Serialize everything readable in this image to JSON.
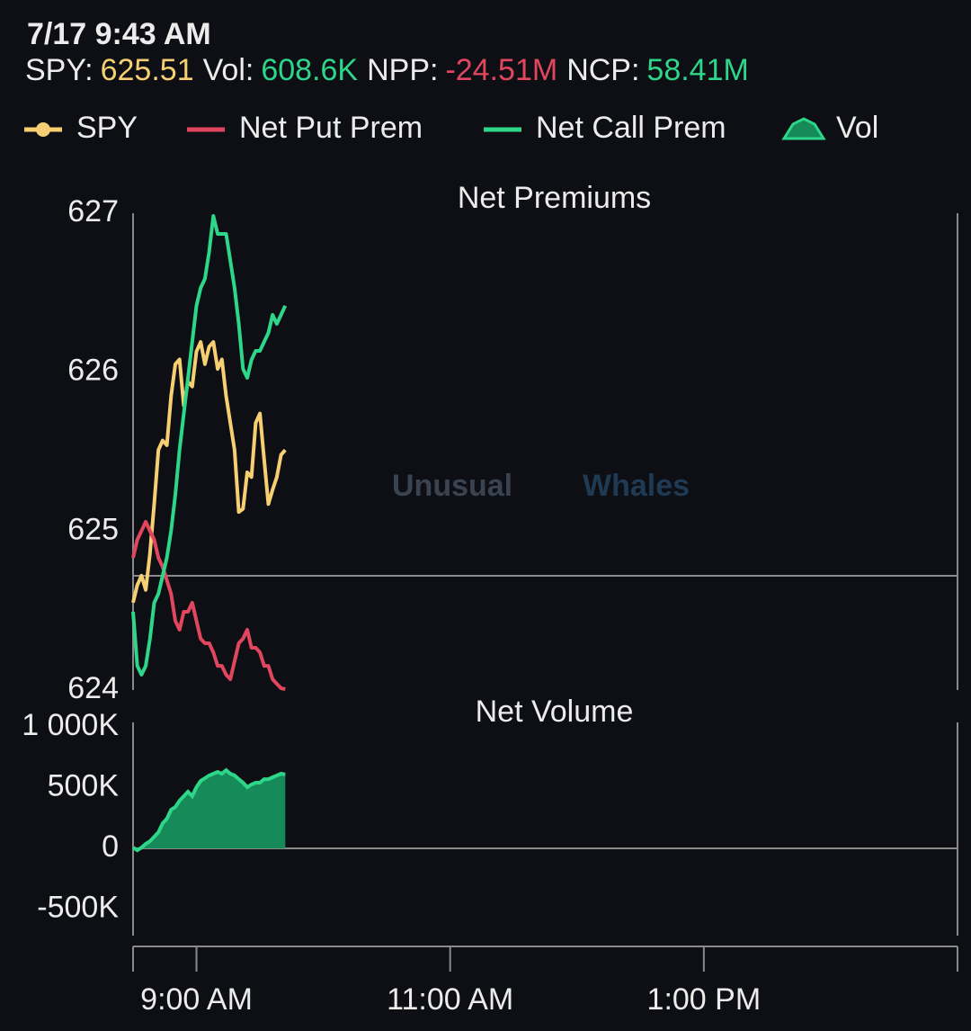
{
  "header": {
    "datetime": "7/17 9:43 AM",
    "stats": [
      {
        "label": "SPY:",
        "value": "625.51",
        "color": "#f6cf72"
      },
      {
        "label": "Vol:",
        "value": "608.6K",
        "color": "#2ed68a"
      },
      {
        "label": "NPP:",
        "value": "-24.51M",
        "color": "#e0475e"
      },
      {
        "label": "NCP:",
        "value": "58.41M",
        "color": "#2ed68a"
      }
    ]
  },
  "watermark": [
    "Unusual",
    "Whales"
  ],
  "chart_data": [
    {
      "type": "line",
      "title": "Net Premiums",
      "x": [
        510,
        512,
        514,
        516,
        518,
        520,
        522,
        524,
        526,
        528,
        530,
        532,
        534,
        536,
        538,
        540,
        542,
        544,
        546,
        548,
        550,
        552,
        554,
        556,
        558,
        560,
        562,
        564,
        566,
        568,
        570,
        572,
        574,
        576,
        578,
        580,
        582
      ],
      "xlim": [
        510,
        900
      ],
      "ylim": [
        624,
        627
      ],
      "yticks": [
        624,
        625,
        626,
        627
      ],
      "y2lim": [
        -24.7,
        78.4
      ],
      "series": [
        {
          "name": "SPY",
          "color": "#f6cf72",
          "legend_symbol": "line-circle",
          "values": [
            624.55,
            624.66,
            624.72,
            624.63,
            624.86,
            625.17,
            625.51,
            625.57,
            625.54,
            625.85,
            626.05,
            626.08,
            625.79,
            625.94,
            625.91,
            626.13,
            626.19,
            626.05,
            626.16,
            626.19,
            626.02,
            626.08,
            625.85,
            625.68,
            625.51,
            625.12,
            625.14,
            625.37,
            625.34,
            625.68,
            625.74,
            625.45,
            625.17,
            625.26,
            625.34,
            625.48,
            625.51
          ]
        },
        {
          "name": "Net Put Prem",
          "color": "#e0475e",
          "axis": "y2",
          "legend_symbol": "line",
          "values": [
            3.89,
            7.78,
            9.73,
            11.67,
            9.73,
            7.78,
            3.89,
            1.95,
            -0.97,
            -3.89,
            -9.73,
            -11.67,
            -7.78,
            -7.78,
            -5.84,
            -9.73,
            -13.62,
            -14.59,
            -14.59,
            -16.54,
            -19.46,
            -19.46,
            -21.4,
            -22.37,
            -18.48,
            -14.59,
            -13.62,
            -11.67,
            -15.56,
            -15.56,
            -16.54,
            -19.46,
            -19.46,
            -22.37,
            -23.35,
            -24.32,
            -24.51
          ]
        },
        {
          "name": "Net Call Prem",
          "color": "#2ed68a",
          "axis": "y2",
          "legend_symbol": "line",
          "values": [
            -7.78,
            -19.46,
            -21.4,
            -19.46,
            -13.62,
            -5.84,
            -3.89,
            0,
            3.89,
            9.73,
            17.51,
            27.24,
            35.02,
            42.8,
            50.58,
            58.37,
            62.26,
            64.2,
            70.04,
            77.82,
            73.93,
            73.93,
            73.93,
            68.09,
            62.26,
            54.47,
            44.75,
            42.8,
            46.69,
            48.64,
            48.64,
            50.58,
            52.53,
            56.42,
            54.47,
            56.42,
            58.41
          ]
        }
      ]
    },
    {
      "type": "area",
      "title": "Net Volume",
      "x": [
        510,
        512,
        514,
        516,
        518,
        520,
        522,
        524,
        526,
        528,
        530,
        532,
        534,
        536,
        538,
        540,
        542,
        544,
        546,
        548,
        550,
        552,
        554,
        556,
        558,
        560,
        562,
        564,
        566,
        568,
        570,
        572,
        574,
        576,
        578,
        580,
        582
      ],
      "xlim": [
        510,
        900
      ],
      "xticks": [
        {
          "value": 540,
          "label": "9:00 AM"
        },
        {
          "value": 660,
          "label": "11:00 AM"
        },
        {
          "value": 780,
          "label": "1:00 PM"
        }
      ],
      "ylim": [
        -807000,
        1037000
      ],
      "yticks": [
        {
          "value": -500000,
          "label": "-500K"
        },
        0,
        {
          "value": 500000,
          "label": "500K"
        },
        {
          "value": 1000000,
          "label": "1 000K"
        }
      ],
      "series": [
        {
          "name": "Vol",
          "color": "#2ed68a",
          "fill": "#178a5a",
          "legend_symbol": "triangle",
          "values": [
            7000,
            -15000,
            7000,
            37000,
            59000,
            96000,
            133000,
            207000,
            244000,
            319000,
            341000,
            393000,
            430000,
            467000,
            430000,
            504000,
            556000,
            578000,
            600000,
            615000,
            630000,
            615000,
            644000,
            615000,
            600000,
            570000,
            541000,
            504000,
            526000,
            541000,
            541000,
            570000,
            570000,
            585000,
            600000,
            615000,
            608600
          ]
        }
      ]
    }
  ]
}
